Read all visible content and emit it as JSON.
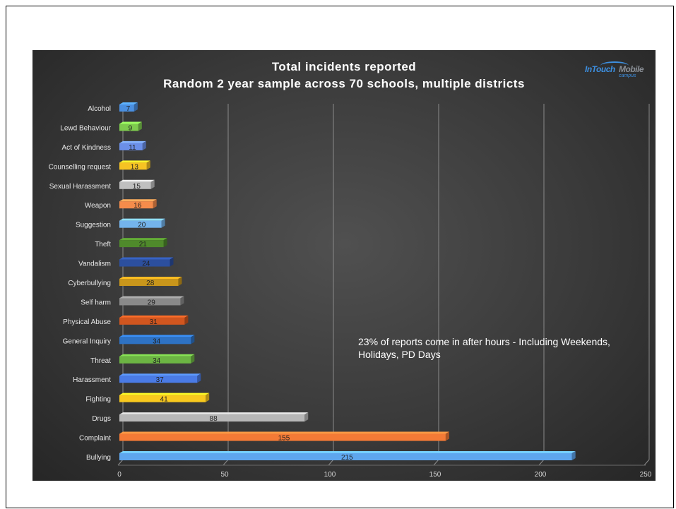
{
  "chart_data": {
    "type": "bar",
    "orientation": "horizontal",
    "title": "Total incidents reported",
    "subtitle": "Random 2 year sample across 70 schools, multiple districts",
    "categories": [
      "Alcohol",
      "Lewd Behaviour",
      "Act of Kindness",
      "Counselling request",
      "Sexual Harassment",
      "Weapon",
      "Suggestion",
      "Theft",
      "Vandalism",
      "Cyberbullying",
      "Self harm",
      "Physical Abuse",
      "General Inquiry",
      "Threat",
      "Harassment",
      "Fighting",
      "Drugs",
      "Complaint",
      "Bullying"
    ],
    "values": [
      7,
      9,
      11,
      13,
      15,
      16,
      20,
      21,
      24,
      28,
      29,
      31,
      34,
      34,
      37,
      41,
      88,
      155,
      215
    ],
    "colors": [
      "#4a8fe0",
      "#7ecb4e",
      "#6b8fe8",
      "#f6c323",
      "#bfbfbf",
      "#f58c4b",
      "#74b4ec",
      "#4f8a2b",
      "#2c4f9e",
      "#c9961b",
      "#8a8a8a",
      "#d1561f",
      "#2e72c4",
      "#6cb543",
      "#4a7be6",
      "#f8c91e",
      "#b7b7b7",
      "#f47a36",
      "#5ea6ee"
    ],
    "xlim": [
      0,
      250
    ],
    "xticks": [
      "0",
      "50",
      "100",
      "150",
      "200",
      "250"
    ],
    "grid": true,
    "annotation": "23% of reports come in after hours - Including Weekends, Holidays, PD Days"
  },
  "logo": {
    "word_a": "InTouch",
    "word_b": "Mobile",
    "sub": "campus"
  }
}
